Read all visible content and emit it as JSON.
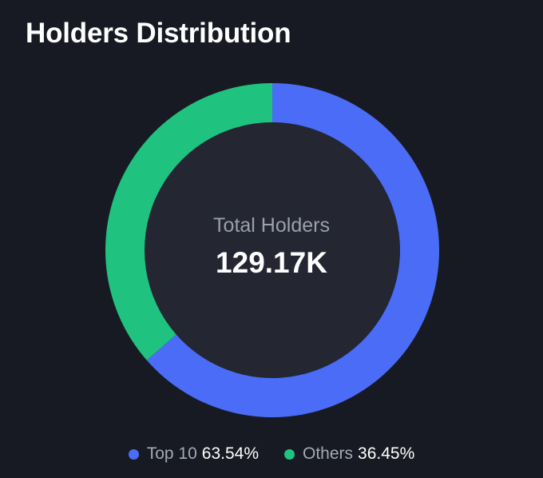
{
  "title": "Holders Distribution",
  "center": {
    "label": "Total Holders",
    "value": "129.17K"
  },
  "legend": [
    {
      "name": "Top 10",
      "value_text": "63.54%",
      "color": "#4a6cf7"
    },
    {
      "name": "Others",
      "value_text": "36.45%",
      "color": "#1fc27f"
    }
  ],
  "chart_data": {
    "type": "pie",
    "style": "donut",
    "categories": [
      "Top 10",
      "Others"
    ],
    "values": [
      63.54,
      36.45
    ],
    "colors": [
      "#4a6cf7",
      "#1fc27f"
    ],
    "title": "Holders Distribution",
    "legend_position": "bottom"
  }
}
